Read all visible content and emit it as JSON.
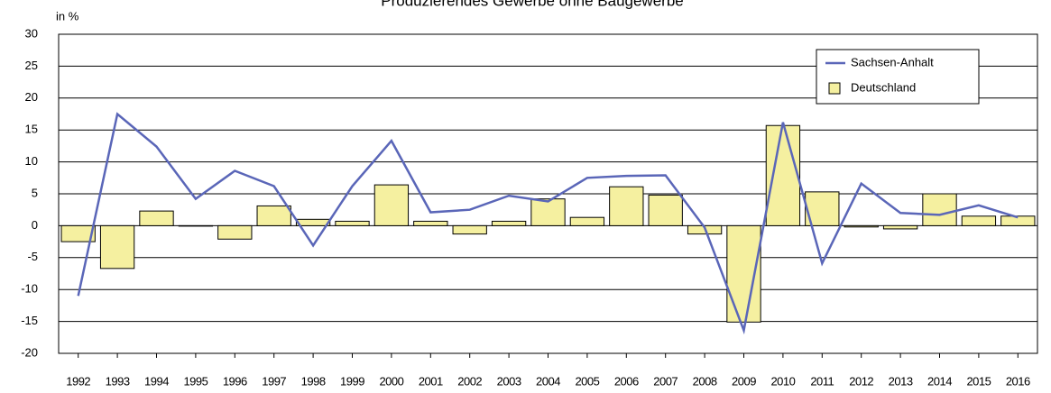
{
  "chart_data": {
    "type": "bar_line",
    "title": "Produzierendes Gewerbe ohne Baugewerbe",
    "y_label": "in %",
    "categories": [
      "1992",
      "1993",
      "1994",
      "1995",
      "1996",
      "1997",
      "1998",
      "1999",
      "2000",
      "2001",
      "2002",
      "2003",
      "2004",
      "2005",
      "2006",
      "2007",
      "2008",
      "2009",
      "2010",
      "2011",
      "2012",
      "2013",
      "2014",
      "2015",
      "2016"
    ],
    "series": [
      {
        "name": "Sachsen-Anhalt",
        "type": "line",
        "color": "#5a66b8",
        "values": [
          -11.0,
          17.5,
          12.4,
          4.2,
          8.6,
          6.2,
          -3.1,
          6.2,
          13.3,
          2.1,
          2.5,
          4.7,
          3.8,
          7.5,
          7.8,
          7.9,
          -0.3,
          -16.4,
          16.2,
          -5.9,
          6.6,
          2.0,
          1.7,
          3.2,
          1.3
        ]
      },
      {
        "name": "Deutschland",
        "type": "bar",
        "color": "#f5f0a0",
        "values": [
          -2.5,
          -6.7,
          2.3,
          0,
          -2.1,
          3.1,
          1.0,
          0.7,
          6.4,
          0.7,
          -1.3,
          0.7,
          4.2,
          1.3,
          6.1,
          4.8,
          -1.3,
          -15.1,
          15.7,
          5.3,
          -0.2,
          -0.5,
          5.0,
          1.5,
          1.5
        ]
      }
    ],
    "ylim": [
      -20,
      30
    ],
    "yticks": [
      -20,
      -15,
      -10,
      -5,
      0,
      5,
      10,
      15,
      20,
      25,
      30
    ],
    "grid": true,
    "legend": "top-right"
  }
}
